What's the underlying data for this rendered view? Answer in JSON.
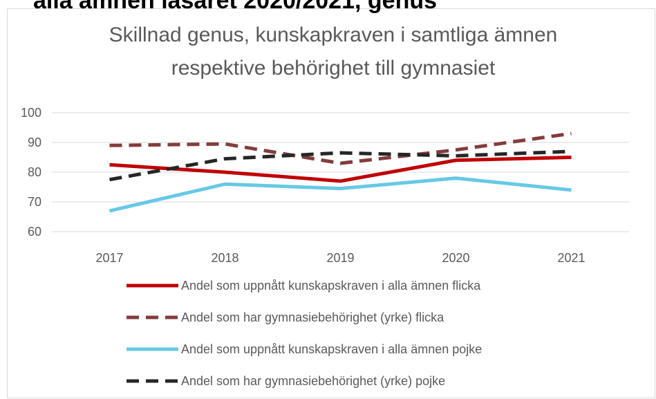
{
  "header": {
    "title": "alla ämnen läsåret 2020/2021, genus"
  },
  "chart_data": {
    "type": "line",
    "title": [
      "Skillnad genus, kunskapkraven i samtliga ämnen",
      "respektive behörighet till gymnasiet"
    ],
    "categories": [
      "2017",
      "2018",
      "2019",
      "2020",
      "2021"
    ],
    "series": [
      {
        "name": "Andel som uppnått kunskapskraven i alla ämnen flicka",
        "color": "#c00000",
        "dashed": false,
        "values": [
          82.5,
          80,
          77,
          84,
          85
        ]
      },
      {
        "name": "Andel som har gymnasiebehörighet (yrke)  flicka",
        "color": "#843c3c",
        "dashed": true,
        "values": [
          89,
          89.5,
          83,
          87.5,
          93
        ]
      },
      {
        "name": "Andel som uppnått kunskapskraven i alla ämnen pojke",
        "color": "#66c8e6",
        "dashed": false,
        "values": [
          67,
          76,
          74.5,
          78,
          74
        ]
      },
      {
        "name": "Andel som har gymnasiebehörighet (yrke) pojke",
        "color": "#262626",
        "dashed": true,
        "values": [
          77.5,
          84.5,
          86.5,
          85.5,
          87
        ]
      }
    ],
    "ylim": [
      60,
      100
    ],
    "yticks": [
      60,
      70,
      80,
      90,
      100
    ],
    "grid": true,
    "legend": "bottom"
  }
}
